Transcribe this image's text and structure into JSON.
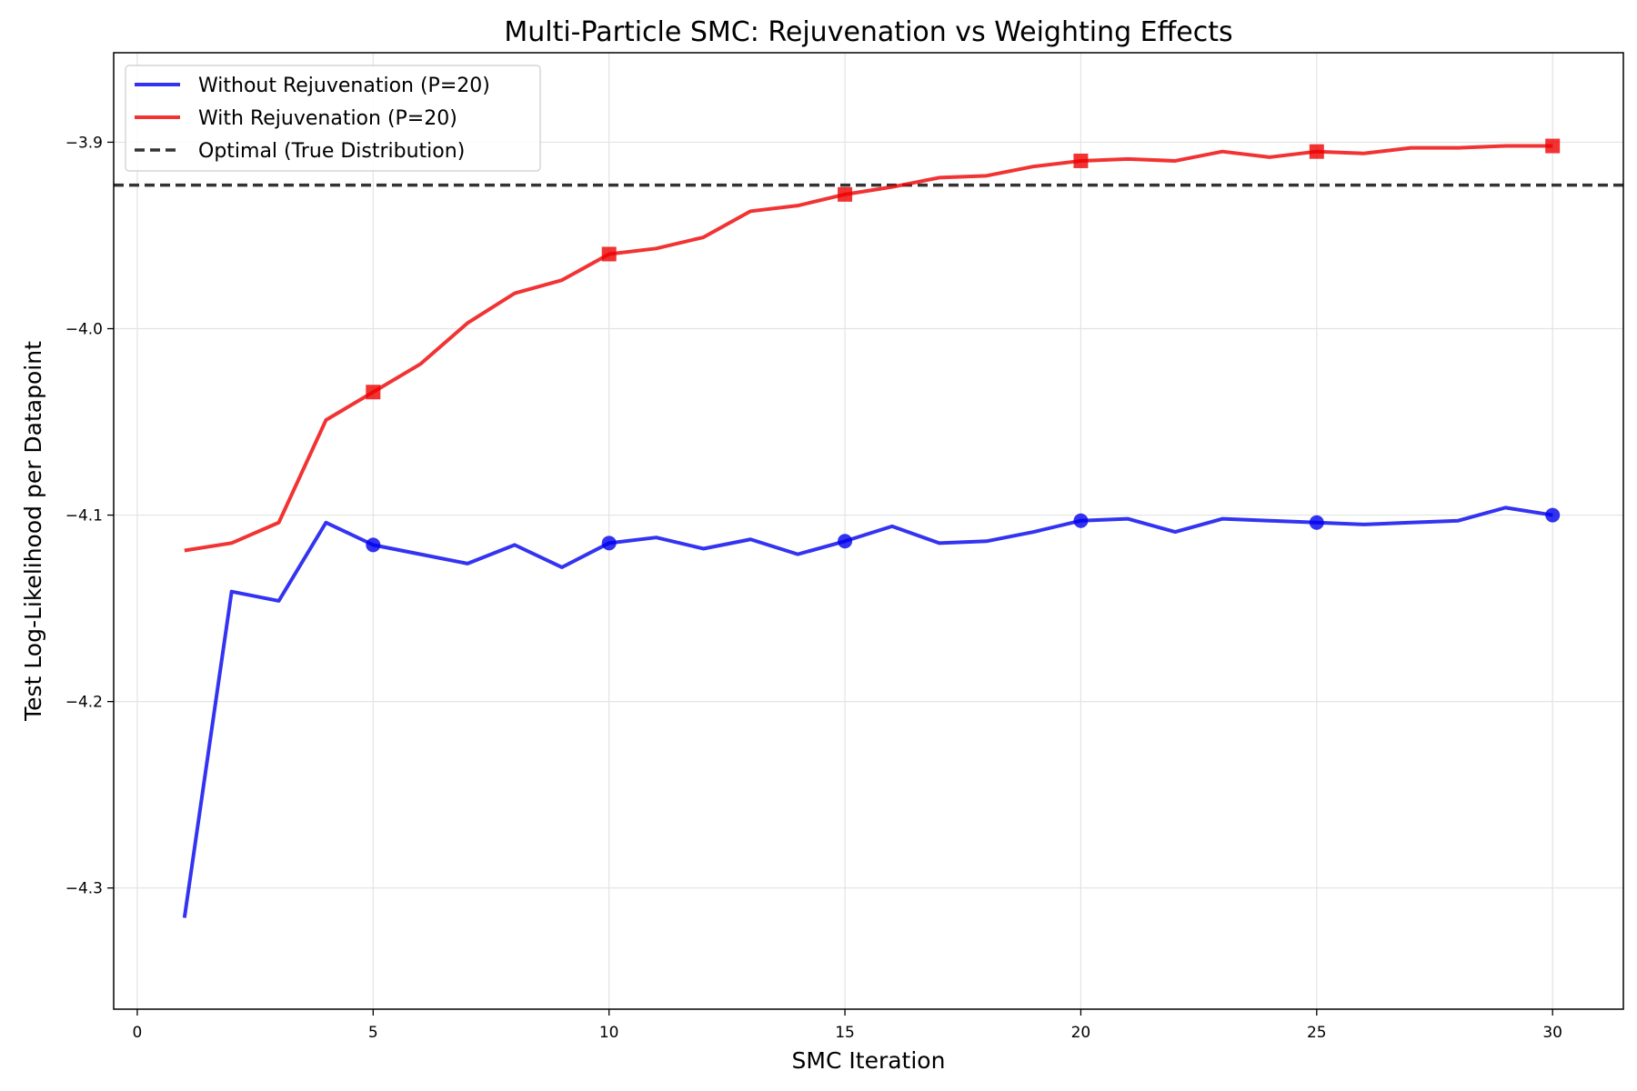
{
  "chart_data": {
    "type": "line",
    "title": "Multi-Particle SMC: Rejuvenation vs Weighting Effects",
    "xlabel": "SMC Iteration",
    "ylabel": "Test Log-Likelihood per Datapoint",
    "xlim": [
      -0.5,
      31.5
    ],
    "ylim": [
      -4.365,
      -3.852
    ],
    "grid": true,
    "legend_position": "top-left",
    "x_ticks": [
      0,
      5,
      10,
      15,
      20,
      25,
      30
    ],
    "x_tick_labels": [
      "0",
      "5",
      "10",
      "15",
      "20",
      "25",
      "30"
    ],
    "y_ticks": [
      -4.3,
      -4.2,
      -4.1,
      -4.0,
      -3.9
    ],
    "y_tick_labels": [
      "−4.3",
      "−4.2",
      "−4.1",
      "−4.0",
      "−3.9"
    ],
    "x": [
      1,
      2,
      3,
      4,
      5,
      6,
      7,
      8,
      9,
      10,
      11,
      12,
      13,
      14,
      15,
      16,
      17,
      18,
      19,
      20,
      21,
      22,
      23,
      24,
      25,
      26,
      27,
      28,
      29,
      30
    ],
    "series": [
      {
        "name": "Without Rejuvenation (P=20)",
        "color": "#0000ee",
        "marker": "circle",
        "marker_x": [
          5,
          10,
          15,
          20,
          25,
          30
        ],
        "values": [
          -4.316,
          -4.141,
          -4.146,
          -4.104,
          -4.116,
          -4.121,
          -4.126,
          -4.116,
          -4.128,
          -4.115,
          -4.112,
          -4.118,
          -4.113,
          -4.121,
          -4.114,
          -4.106,
          -4.115,
          -4.114,
          -4.109,
          -4.103,
          -4.102,
          -4.109,
          -4.102,
          -4.103,
          -4.104,
          -4.105,
          -4.104,
          -4.103,
          -4.096,
          -4.1
        ]
      },
      {
        "name": "With Rejuvenation (P=20)",
        "color": "#ee0000",
        "marker": "square",
        "marker_x": [
          5,
          10,
          15,
          20,
          25,
          30
        ],
        "values": [
          -4.119,
          -4.115,
          -4.104,
          -4.049,
          -4.034,
          -4.019,
          -3.997,
          -3.981,
          -3.974,
          -3.96,
          -3.957,
          -3.951,
          -3.937,
          -3.934,
          -3.928,
          -3.924,
          -3.919,
          -3.918,
          -3.913,
          -3.91,
          -3.909,
          -3.91,
          -3.905,
          -3.908,
          -3.905,
          -3.906,
          -3.903,
          -3.903,
          -3.902,
          -3.902
        ]
      }
    ],
    "reference_line": {
      "name": "Optimal (True Distribution)",
      "y": -3.923,
      "color": "#333333",
      "style": "dashed"
    }
  }
}
